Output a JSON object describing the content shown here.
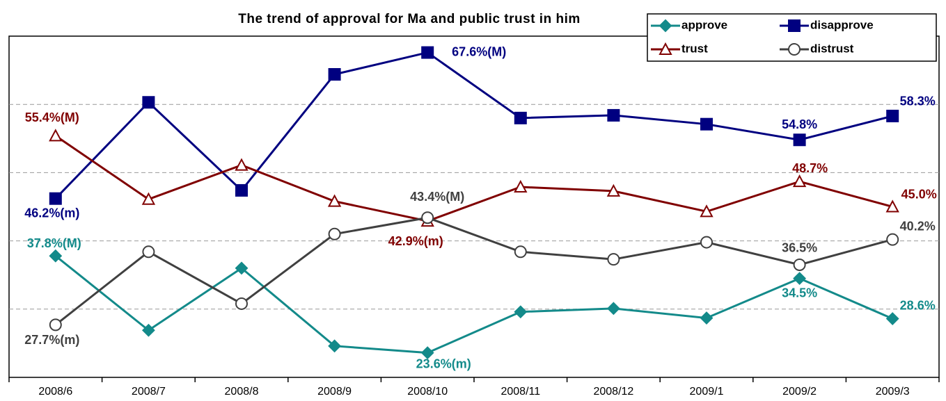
{
  "chart_data": {
    "type": "line",
    "title": "The trend of approval for Ma and public trust in him",
    "categories": [
      "2008/6",
      "2008/7",
      "2008/8",
      "2008/9",
      "2008/10",
      "2008/11",
      "2008/12",
      "2009/1",
      "2009/2",
      "2009/3"
    ],
    "ylim": [
      20,
      70
    ],
    "yticks": [
      30,
      40,
      50,
      60
    ],
    "grid": true,
    "legend": "upper right",
    "series": [
      {
        "name": "approve",
        "color": "#138a8a",
        "marker": "diamond",
        "values": [
          37.8,
          26.9,
          36.0,
          24.6,
          23.6,
          29.6,
          30.1,
          28.7,
          34.5,
          28.6
        ],
        "value_labels": [
          "37.8%(M)",
          null,
          null,
          null,
          "23.6%(m)",
          null,
          null,
          null,
          "34.5%",
          "28.6%"
        ]
      },
      {
        "name": "disapprove",
        "color": "#000080",
        "marker": "square",
        "values": [
          46.2,
          60.3,
          47.4,
          64.4,
          67.6,
          58.0,
          58.4,
          57.1,
          54.8,
          58.3
        ],
        "value_labels": [
          "46.2%(m)",
          null,
          null,
          null,
          "67.6%(M)",
          null,
          null,
          null,
          "54.8%",
          "58.3%"
        ]
      },
      {
        "name": "trust",
        "color": "#800000",
        "marker": "triangle",
        "values": [
          55.4,
          46.1,
          51.1,
          45.8,
          42.9,
          47.9,
          47.3,
          44.3,
          48.7,
          45.0
        ],
        "value_labels": [
          "55.4%(M)",
          null,
          null,
          null,
          "42.9%(m)",
          null,
          null,
          null,
          "48.7%",
          "45.0%"
        ]
      },
      {
        "name": "distrust",
        "color": "#404040",
        "marker": "circle",
        "values": [
          27.7,
          38.4,
          30.8,
          41.0,
          43.4,
          38.4,
          37.3,
          39.8,
          36.5,
          40.2
        ],
        "value_labels": [
          "27.7%(m)",
          null,
          null,
          null,
          "43.4%(M)",
          null,
          null,
          null,
          "36.5%",
          "40.2%"
        ]
      }
    ]
  }
}
